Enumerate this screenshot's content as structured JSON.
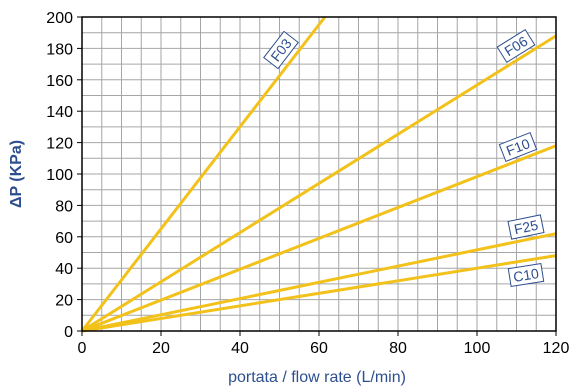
{
  "chart_data": {
    "type": "line",
    "xlabel": "portata / flow rate (L/min)",
    "ylabel": "ΔP (KPa)",
    "xlim": [
      0,
      120
    ],
    "ylim": [
      0,
      200
    ],
    "x_ticks": [
      0,
      20,
      40,
      60,
      80,
      100,
      120
    ],
    "y_ticks": [
      0,
      20,
      40,
      60,
      80,
      100,
      120,
      140,
      160,
      180,
      200
    ],
    "x_minor_step": 5,
    "y_minor_step": 10,
    "grid": true,
    "legend": "none; series names printed as boxed labels at line ends",
    "series": [
      {
        "name": "F03",
        "x": [
          0,
          61.5
        ],
        "y": [
          0,
          200
        ]
      },
      {
        "name": "F06",
        "x": [
          0,
          120
        ],
        "y": [
          0,
          188
        ]
      },
      {
        "name": "F10",
        "x": [
          0,
          120
        ],
        "y": [
          0,
          118
        ]
      },
      {
        "name": "F25",
        "x": [
          0,
          120
        ],
        "y": [
          0,
          62
        ]
      },
      {
        "name": "C10",
        "x": [
          0,
          120
        ],
        "y": [
          0,
          48
        ]
      }
    ],
    "colors": {
      "line": "#f2c11a",
      "grid": "#a6a6a6",
      "axis_title": "#2e4f8f",
      "label_text": "#2e4f8f",
      "label_border": "#2e4f8f"
    }
  }
}
